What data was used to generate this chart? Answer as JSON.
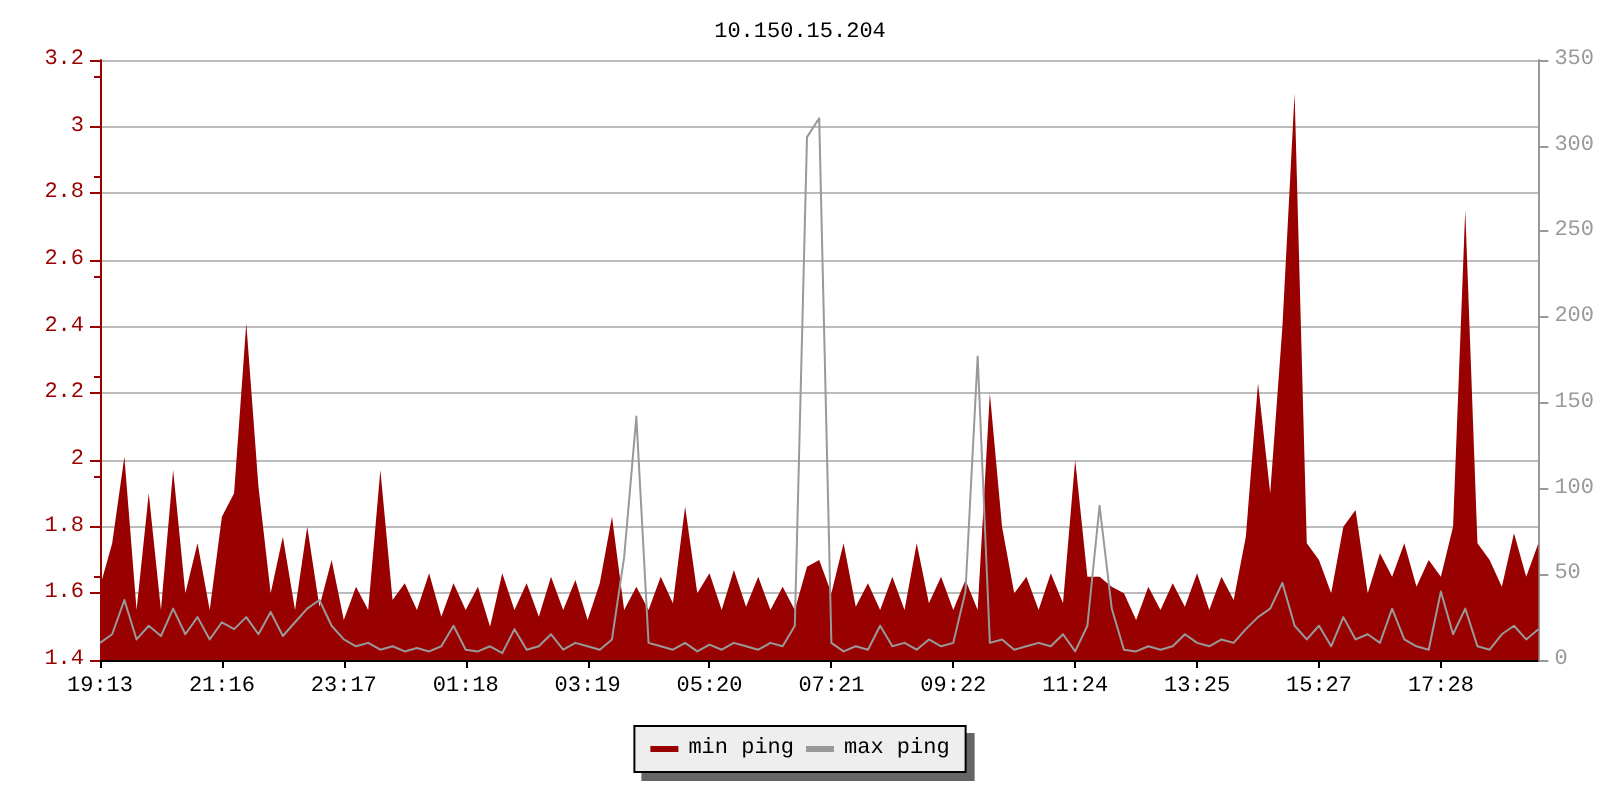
{
  "chart_data": {
    "type": "line",
    "title": "10.150.15.204",
    "categories": [
      "19:13",
      null,
      null,
      null,
      null,
      null,
      null,
      null,
      null,
      null,
      "21:16",
      null,
      null,
      null,
      null,
      null,
      null,
      null,
      null,
      null,
      "23:17",
      null,
      null,
      null,
      null,
      null,
      null,
      null,
      null,
      null,
      "01:18",
      null,
      null,
      null,
      null,
      null,
      null,
      null,
      null,
      null,
      "03:19",
      null,
      null,
      null,
      null,
      null,
      null,
      null,
      null,
      null,
      "05:20",
      null,
      null,
      null,
      null,
      null,
      null,
      null,
      null,
      null,
      "07:21",
      null,
      null,
      null,
      null,
      null,
      null,
      null,
      null,
      null,
      "09:22",
      null,
      null,
      null,
      null,
      null,
      null,
      null,
      null,
      null,
      "11:24",
      null,
      null,
      null,
      null,
      null,
      null,
      null,
      null,
      null,
      "13:25",
      null,
      null,
      null,
      null,
      null,
      null,
      null,
      null,
      null,
      "15:27",
      null,
      null,
      null,
      null,
      null,
      null,
      null,
      null,
      null,
      "17:28",
      null,
      null,
      null,
      null,
      null,
      null,
      null,
      null
    ],
    "ylim": [
      1.4,
      3.2
    ],
    "yticks": [
      1.4,
      1.6,
      1.8,
      2.0,
      2.2,
      2.4,
      2.6,
      2.8,
      3.0,
      3.2
    ],
    "y2lim": [
      0,
      350
    ],
    "y2ticks": [
      0,
      50,
      100,
      150,
      200,
      250,
      300,
      350
    ],
    "grid": "y",
    "legend": "bottom",
    "series": [
      {
        "name": "min ping",
        "type": "area",
        "color": "#990000",
        "values": [
          1.62,
          1.75,
          2.01,
          1.55,
          1.9,
          1.55,
          1.97,
          1.6,
          1.75,
          1.55,
          1.83,
          1.9,
          2.41,
          1.92,
          1.6,
          1.77,
          1.55,
          1.8,
          1.56,
          1.7,
          1.52,
          1.62,
          1.55,
          1.97,
          1.58,
          1.63,
          1.55,
          1.66,
          1.53,
          1.63,
          1.55,
          1.62,
          1.5,
          1.66,
          1.55,
          1.63,
          1.53,
          1.65,
          1.55,
          1.64,
          1.52,
          1.63,
          1.83,
          1.55,
          1.62,
          1.55,
          1.65,
          1.57,
          1.86,
          1.6,
          1.66,
          1.55,
          1.67,
          1.56,
          1.65,
          1.55,
          1.62,
          1.55,
          1.68,
          1.7,
          1.6,
          1.75,
          1.56,
          1.63,
          1.55,
          1.65,
          1.55,
          1.75,
          1.57,
          1.65,
          1.55,
          1.64,
          1.55,
          2.2,
          1.8,
          1.6,
          1.65,
          1.55,
          1.66,
          1.57,
          2.0,
          1.65,
          1.65,
          1.62,
          1.6,
          1.52,
          1.62,
          1.55,
          1.63,
          1.56,
          1.66,
          1.55,
          1.65,
          1.58,
          1.77,
          2.23,
          1.9,
          2.4,
          3.1,
          1.75,
          1.7,
          1.6,
          1.8,
          1.85,
          1.6,
          1.72,
          1.65,
          1.75,
          1.62,
          1.7,
          1.65,
          1.8,
          2.75,
          1.75,
          1.7,
          1.62,
          1.78,
          1.65,
          1.75
        ]
      },
      {
        "name": "max ping",
        "type": "line",
        "axis": "y2",
        "color": "#999999",
        "values": [
          10,
          15,
          35,
          12,
          20,
          14,
          30,
          15,
          25,
          12,
          22,
          18,
          25,
          15,
          28,
          14,
          22,
          30,
          35,
          20,
          12,
          8,
          10,
          6,
          8,
          5,
          7,
          5,
          8,
          20,
          6,
          5,
          8,
          4,
          18,
          6,
          8,
          15,
          6,
          10,
          8,
          6,
          12,
          60,
          142,
          10,
          8,
          6,
          10,
          5,
          9,
          6,
          10,
          8,
          6,
          10,
          8,
          20,
          305,
          316,
          10,
          5,
          8,
          6,
          20,
          8,
          10,
          6,
          12,
          8,
          10,
          40,
          177,
          10,
          12,
          6,
          8,
          10,
          8,
          15,
          5,
          20,
          90,
          30,
          6,
          5,
          8,
          6,
          8,
          15,
          10,
          8,
          12,
          10,
          18,
          25,
          30,
          45,
          20,
          12,
          20,
          8,
          25,
          12,
          15,
          10,
          30,
          12,
          8,
          6,
          40,
          15,
          30,
          8,
          6,
          15,
          20,
          12,
          18
        ]
      }
    ]
  }
}
